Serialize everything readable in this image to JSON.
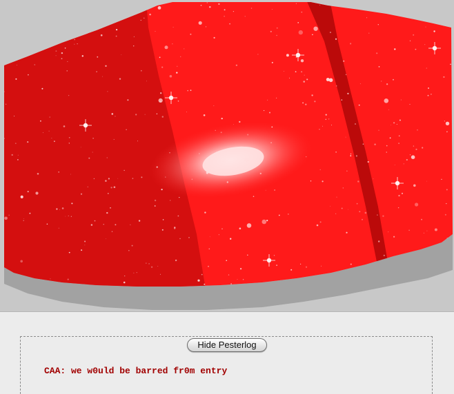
{
  "artwork": {
    "icon": "red-galaxy-panel",
    "colors": {
      "background": "#c8c8c8",
      "shadow": "#a2a2a2",
      "red_bright": "#ff1a1a",
      "red_dark": "#d40f0f",
      "stripe": "#bb0a0a",
      "galaxy_core": "#ffd6d6"
    }
  },
  "pesterlog": {
    "toggle_label": "Hide Pesterlog",
    "lines": [
      {
        "text": "CAA: we w0uld be barred fr0m entry",
        "color": "#a10000"
      }
    ]
  }
}
